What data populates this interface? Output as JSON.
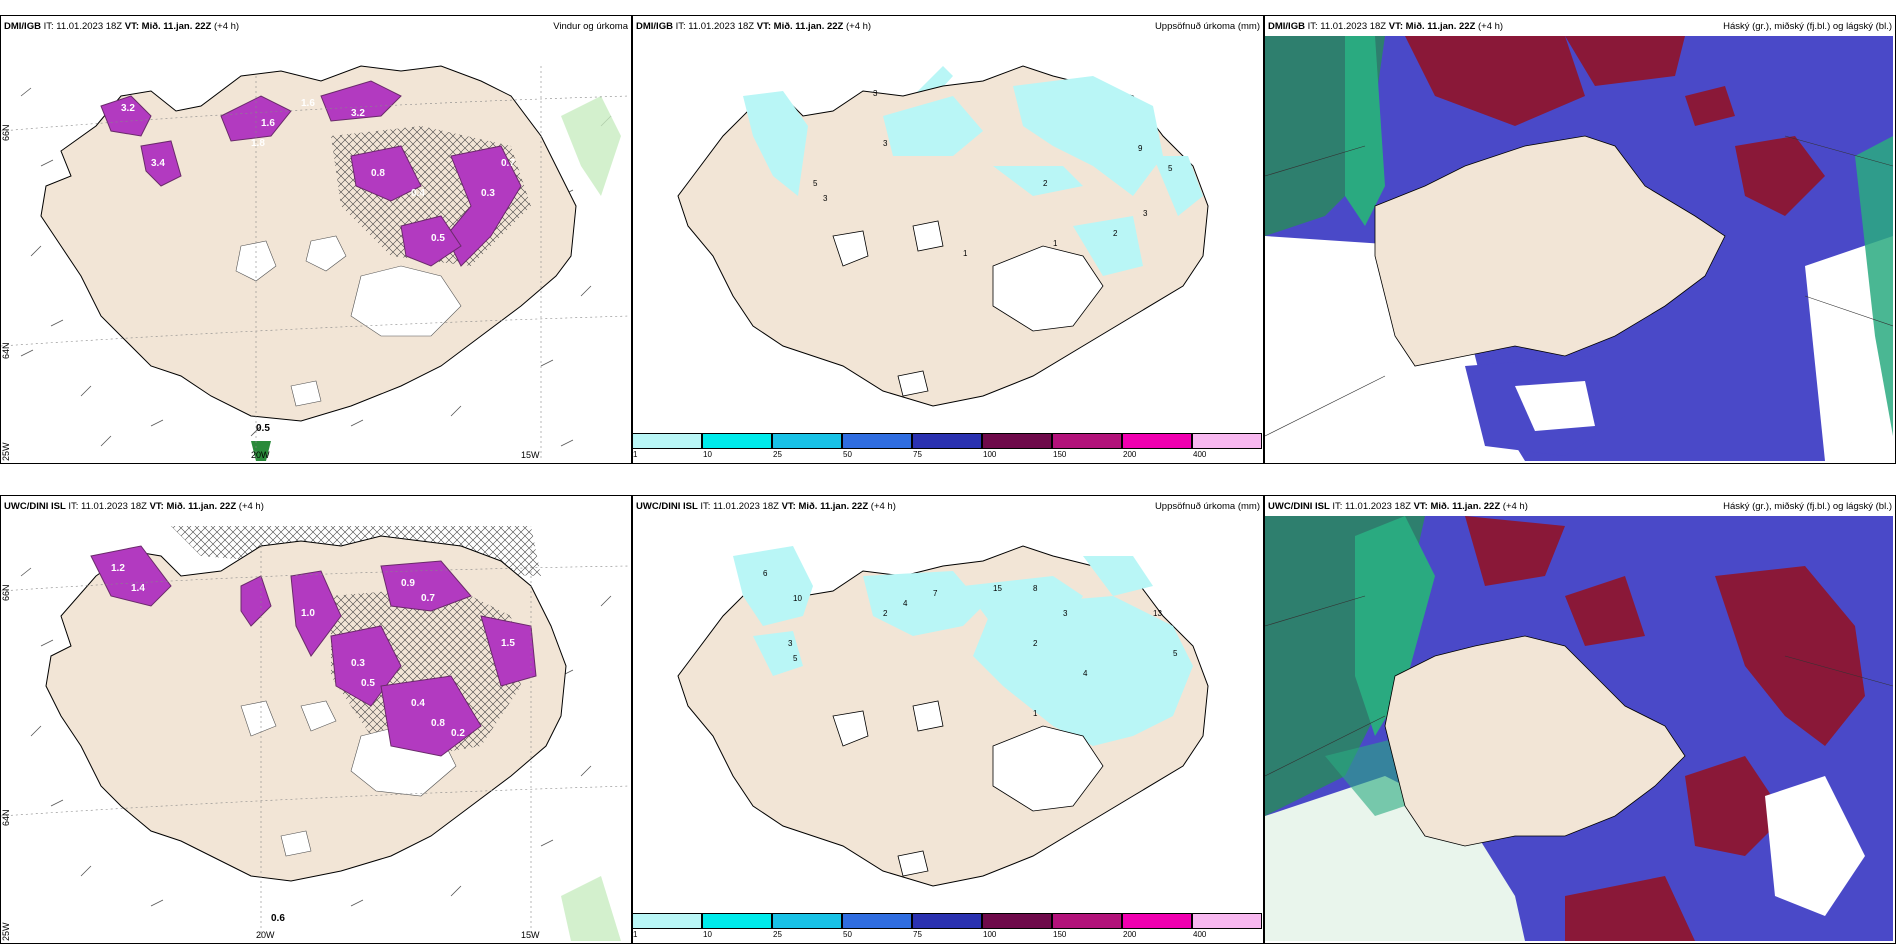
{
  "rows": [
    {
      "model": "DMI/IGB",
      "panels": [
        {
          "model": "DMI/IGB",
          "it": "IT: 11.01.2023 18Z",
          "vt_label": "VT:",
          "vt": "Mið. 11.jan. 22Z",
          "lead": "(+4 h)",
          "title": "Vindur og úrkoma"
        },
        {
          "model": "DMI/IGB",
          "it": "IT: 11.01.2023 18Z",
          "vt_label": "VT:",
          "vt": "Mið. 11.jan. 22Z",
          "lead": "(+4 h)",
          "title": "Uppsöfnuð úrkoma (mm)"
        },
        {
          "model": "DMI/IGB",
          "it": "IT: 11.01.2023 18Z",
          "vt_label": "VT:",
          "vt": "Mið. 11.jan. 22Z",
          "lead": "(+4 h)",
          "title": "Háský (gr.), miðský (fj.bl.) og lágský (bl.)"
        }
      ]
    },
    {
      "model": "UWC/DINI ISL",
      "panels": [
        {
          "model": "UWC/DINI ISL",
          "it": "IT: 11.01.2023 18Z",
          "vt_label": "VT:",
          "vt": "Mið. 11.jan. 22Z",
          "lead": "(+4 h)",
          "title": ""
        },
        {
          "model": "UWC/DINI ISL",
          "it": "IT: 11.01.2023 18Z",
          "vt_label": "VT:",
          "vt": "Mið. 11.jan. 22Z",
          "lead": "(+4 h)",
          "title": "Uppsöfnuð úrkoma (mm)"
        },
        {
          "model": "UWC/DINI ISL",
          "it": "IT: 11.01.2023 18Z",
          "vt_label": "VT:",
          "vt": "Mið. 11.jan. 22Z",
          "lead": "(+4 h)",
          "title": "Háský (gr.), miðský (fj.bl.) og lágský (bl.)"
        }
      ]
    }
  ],
  "grid_labels": {
    "lat66": "66N",
    "lat64": "64N",
    "lon25": "25W",
    "lon20": "20W",
    "lon15": "15W"
  },
  "precip_labels_top": [
    "3.2",
    "3.4",
    "1.8",
    "3.2",
    "1.6",
    "0.8",
    "0.4",
    "0.5",
    "0.3",
    "0.7",
    "1.6",
    "0.5"
  ],
  "precip_labels_bottom": [
    "1.2",
    "1.4",
    "0.9",
    "0.7",
    "0.3",
    "0.5",
    "0.4",
    "0.8",
    "0.2",
    "1.0",
    "1.5",
    "0.6"
  ],
  "accum_labels_top": [
    "3",
    "1",
    "5",
    "3",
    "3",
    "2",
    "1",
    "2",
    "3",
    "9",
    "5"
  ],
  "accum_labels_bottom": [
    "6",
    "10",
    "3",
    "5",
    "2",
    "4",
    "7",
    "15",
    "8",
    "2",
    "3",
    "4",
    "1",
    "13",
    "5"
  ],
  "colorbar": {
    "ticks": [
      "1",
      "10",
      "25",
      "50",
      "75",
      "100",
      "150",
      "200",
      "400"
    ],
    "colors": [
      "#b9f6f6",
      "#00eaea",
      "#19c2e6",
      "#2f6de0",
      "#2a31b0",
      "#6e0a4a",
      "#b2127a",
      "#f000b0",
      "#f8b8f0"
    ]
  },
  "colors": {
    "land": "#f2e5d6",
    "glacier": "#ffffff",
    "precip": "#b23ac0",
    "precip_dark": "#6a2a6a",
    "accum": "#b9f6f6",
    "high_cloud": "#3a9a7a",
    "mid_cloud": "#4a49c8",
    "low_cloud": "#8a1838",
    "sea_green": "#2aaa80"
  }
}
